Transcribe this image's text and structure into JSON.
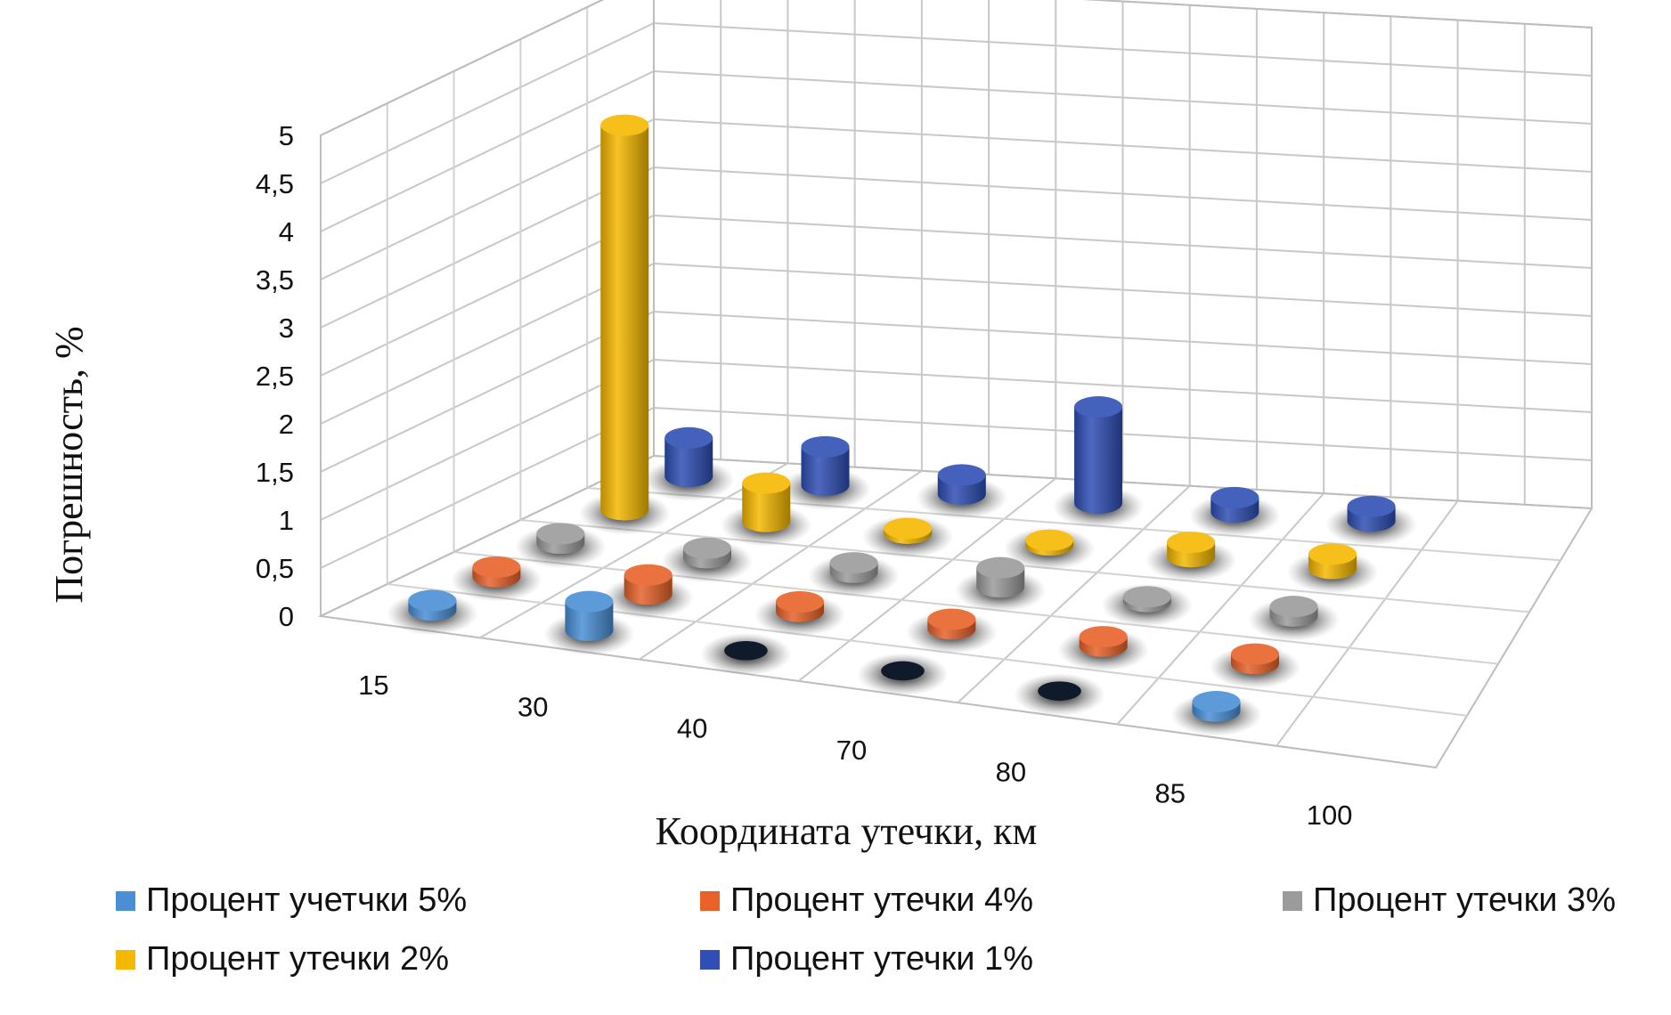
{
  "chart_data": {
    "type": "bar",
    "variant": "3d-cylinder",
    "title": "",
    "xlabel": "Координата утечки, км",
    "ylabel": "Погрешность, %",
    "ylim": [
      0,
      5
    ],
    "yticks": [
      "0",
      "0,5",
      "1",
      "1,5",
      "2",
      "2,5",
      "3",
      "3,5",
      "4",
      "4,5",
      "5"
    ],
    "categories": [
      "15",
      "30",
      "40",
      "70",
      "80",
      "85",
      "100"
    ],
    "grid": true,
    "legend_position": "bottom",
    "series": [
      {
        "name": "Процент учетчки 5%",
        "color": "#4a8fd6",
        "values": [
          0.1,
          0.3,
          0,
          0,
          0,
          0.1,
          null
        ]
      },
      {
        "name": "Процент утечки 4%",
        "color": "#e8622a",
        "values": [
          0.1,
          0.2,
          0.1,
          0.1,
          0.1,
          0.1,
          null
        ]
      },
      {
        "name": "Процент утечки 3%",
        "color": "#9b9b9b",
        "values": [
          0.1,
          0.1,
          0.1,
          0.2,
          0.05,
          0.1,
          null
        ]
      },
      {
        "name": "Процент утечки 2%",
        "color": "#f5b800",
        "values": [
          4.0,
          0.4,
          0.05,
          0.05,
          0.15,
          0.15,
          null
        ]
      },
      {
        "name": "Процент утечки 1%",
        "color": "#2f4fb5",
        "values": [
          0.4,
          0.4,
          0.2,
          1.0,
          0.15,
          0.15,
          null
        ]
      }
    ]
  }
}
